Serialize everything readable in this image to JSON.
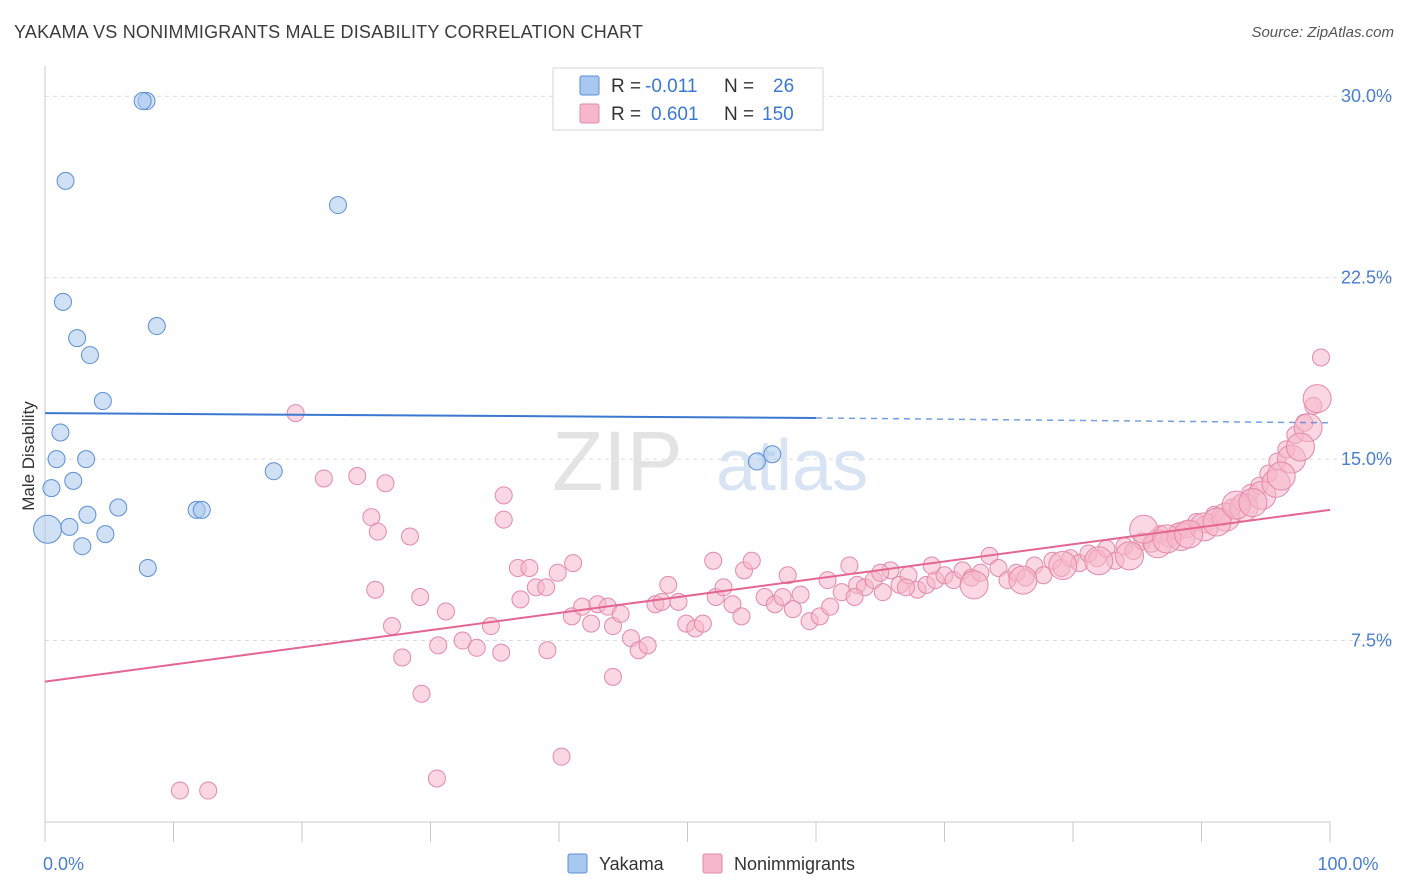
{
  "title": "YAKAMA VS NONIMMIGRANTS MALE DISABILITY CORRELATION CHART",
  "source": "Source: ZipAtlas.com",
  "watermark": {
    "part1": "ZIP",
    "part2": "atlas"
  },
  "legend_box": {
    "rows": [
      {
        "r_label": "R =",
        "r_value": "-0.011",
        "n_label": "N =",
        "n_value": "26",
        "color": "#a9c8ef"
      },
      {
        "r_label": "R =",
        "r_value": "0.601",
        "n_label": "N =",
        "n_value": "150",
        "color": "#f6b6cb"
      }
    ]
  },
  "bottom_legend": [
    {
      "label": "Yakama",
      "color": "#a9c8ef"
    },
    {
      "label": "Nonimmigrants",
      "color": "#f6b6cb"
    }
  ],
  "colors": {
    "yakama_fill": "#a9c8ef",
    "yakama_stroke": "#5b8fd6",
    "yakama_line": "#3b78d1",
    "nonimm_fill": "#f6b6cb",
    "nonimm_stroke": "#e38aa7",
    "nonimm_line": "#e3668f",
    "tick_label": "#4a7fce",
    "grid": "#dcdcdc"
  },
  "chart_data": {
    "type": "scatter",
    "xlabel": "",
    "ylabel": "Male Disability",
    "xlim": [
      0,
      100
    ],
    "ylim": [
      0,
      31
    ],
    "x_tick_labels": [
      {
        "value": 0,
        "label": "0.0%"
      },
      {
        "value": 100,
        "label": "100.0%"
      }
    ],
    "y_ticks": [
      {
        "value": 7.5,
        "label": "7.5%"
      },
      {
        "value": 15.0,
        "label": "15.0%"
      },
      {
        "value": 22.5,
        "label": "22.5%"
      },
      {
        "value": 30.0,
        "label": "30.0%"
      }
    ],
    "grid": true,
    "series": [
      {
        "name": "Yakama",
        "points": [
          [
            0.2,
            12.1,
            2
          ],
          [
            1.6,
            26.5,
            1
          ],
          [
            1.4,
            21.5,
            1
          ],
          [
            2.5,
            20.0,
            1
          ],
          [
            3.5,
            19.3,
            1
          ],
          [
            4.5,
            17.4,
            1
          ],
          [
            1.2,
            16.1,
            1
          ],
          [
            0.9,
            15.0,
            1
          ],
          [
            3.2,
            15.0,
            1
          ],
          [
            0.5,
            13.8,
            1
          ],
          [
            2.2,
            14.1,
            1
          ],
          [
            3.3,
            12.7,
            1
          ],
          [
            5.7,
            13.0,
            1
          ],
          [
            1.9,
            12.2,
            1
          ],
          [
            4.7,
            11.9,
            1
          ],
          [
            2.9,
            11.4,
            1
          ],
          [
            7.9,
            29.8,
            1
          ],
          [
            7.6,
            29.8,
            1
          ],
          [
            22.8,
            25.5,
            1
          ],
          [
            8.7,
            20.5,
            1
          ],
          [
            17.8,
            14.5,
            1
          ],
          [
            11.8,
            12.9,
            1
          ],
          [
            12.2,
            12.9,
            1
          ],
          [
            8.0,
            10.5,
            1
          ],
          [
            55.4,
            14.9,
            1
          ],
          [
            56.6,
            15.2,
            1
          ]
        ],
        "trend": {
          "x_start": 0,
          "y_start": 16.9,
          "x_end": 60,
          "y_end": 16.7,
          "dashed_to_x": 100,
          "dashed_to_y": 16.5
        }
      },
      {
        "name": "Nonimmigrants",
        "points": [
          [
            19.5,
            16.9,
            1
          ],
          [
            21.7,
            14.2,
            1
          ],
          [
            24.3,
            14.3,
            1
          ],
          [
            26.5,
            14.0,
            1
          ],
          [
            25.4,
            12.6,
            1
          ],
          [
            25.9,
            12.0,
            1
          ],
          [
            28.4,
            11.8,
            1
          ],
          [
            35.7,
            13.5,
            1
          ],
          [
            35.7,
            12.5,
            1
          ],
          [
            36.8,
            10.5,
            1
          ],
          [
            37.7,
            10.5,
            1
          ],
          [
            38.2,
            9.7,
            1
          ],
          [
            39.0,
            9.7,
            1
          ],
          [
            39.9,
            10.3,
            1
          ],
          [
            41.1,
            10.7,
            1
          ],
          [
            25.7,
            9.6,
            1
          ],
          [
            27.0,
            8.1,
            1
          ],
          [
            27.8,
            6.8,
            1
          ],
          [
            29.2,
            9.3,
            1
          ],
          [
            30.6,
            7.3,
            1
          ],
          [
            31.2,
            8.7,
            1
          ],
          [
            32.5,
            7.5,
            1
          ],
          [
            33.6,
            7.2,
            1
          ],
          [
            34.7,
            8.1,
            1
          ],
          [
            35.5,
            7.0,
            1
          ],
          [
            37.0,
            9.2,
            1
          ],
          [
            39.1,
            7.1,
            1
          ],
          [
            41.0,
            8.5,
            1
          ],
          [
            41.8,
            8.9,
            1
          ],
          [
            42.5,
            8.2,
            1
          ],
          [
            43.0,
            9.0,
            1
          ],
          [
            43.8,
            8.9,
            1
          ],
          [
            44.2,
            8.1,
            1
          ],
          [
            44.8,
            8.6,
            1
          ],
          [
            45.6,
            7.6,
            1
          ],
          [
            46.2,
            7.1,
            1
          ],
          [
            46.9,
            7.3,
            1
          ],
          [
            47.5,
            9.0,
            1
          ],
          [
            48.0,
            9.1,
            1
          ],
          [
            48.5,
            9.8,
            1
          ],
          [
            49.3,
            9.1,
            1
          ],
          [
            49.9,
            8.2,
            1
          ],
          [
            50.6,
            8.0,
            1
          ],
          [
            51.2,
            8.2,
            1
          ],
          [
            52.2,
            9.3,
            1
          ],
          [
            52.8,
            9.7,
            1
          ],
          [
            53.5,
            9.0,
            1
          ],
          [
            54.2,
            8.5,
            1
          ],
          [
            52.0,
            10.8,
            1
          ],
          [
            54.4,
            10.4,
            1
          ],
          [
            55.0,
            10.8,
            1
          ],
          [
            56.0,
            9.3,
            1
          ],
          [
            56.8,
            9.0,
            1
          ],
          [
            57.4,
            9.3,
            1
          ],
          [
            58.2,
            8.8,
            1
          ],
          [
            58.8,
            9.4,
            1
          ],
          [
            59.5,
            8.3,
            1
          ],
          [
            60.3,
            8.5,
            1
          ],
          [
            61.1,
            8.9,
            1
          ],
          [
            62.0,
            9.5,
            1
          ],
          [
            62.6,
            10.6,
            1
          ],
          [
            63.2,
            9.8,
            1
          ],
          [
            63.8,
            9.7,
            1
          ],
          [
            64.5,
            10.0,
            1
          ],
          [
            65.2,
            9.5,
            1
          ],
          [
            65.8,
            10.4,
            1
          ],
          [
            66.5,
            9.8,
            1
          ],
          [
            67.2,
            10.2,
            1
          ],
          [
            67.9,
            9.6,
            1
          ],
          [
            68.6,
            9.8,
            1
          ],
          [
            69.3,
            10.0,
            1
          ],
          [
            70.0,
            10.2,
            1
          ],
          [
            70.7,
            10.0,
            1
          ],
          [
            71.4,
            10.4,
            1
          ],
          [
            72.1,
            10.1,
            1
          ],
          [
            72.8,
            10.3,
            1
          ],
          [
            73.5,
            11.0,
            1
          ],
          [
            74.2,
            10.5,
            1
          ],
          [
            74.9,
            10.0,
            1
          ],
          [
            75.6,
            10.3,
            1
          ],
          [
            76.3,
            10.1,
            1
          ],
          [
            77.0,
            10.6,
            1
          ],
          [
            77.7,
            10.2,
            1
          ],
          [
            78.4,
            10.8,
            1
          ],
          [
            79.1,
            10.5,
            1
          ],
          [
            79.8,
            10.9,
            1
          ],
          [
            80.5,
            10.7,
            1
          ],
          [
            81.2,
            11.1,
            1
          ],
          [
            81.9,
            10.9,
            1
          ],
          [
            82.6,
            11.3,
            1
          ],
          [
            83.3,
            10.8,
            1
          ],
          [
            84.0,
            11.4,
            1
          ],
          [
            84.7,
            11.2,
            1
          ],
          [
            85.4,
            11.6,
            1
          ],
          [
            86.1,
            11.5,
            1
          ],
          [
            86.8,
            11.9,
            1
          ],
          [
            87.5,
            11.7,
            1
          ],
          [
            88.2,
            12.0,
            1
          ],
          [
            88.9,
            12.1,
            1
          ],
          [
            89.6,
            12.4,
            1
          ],
          [
            90.3,
            12.3,
            1
          ],
          [
            91.0,
            12.7,
            1
          ],
          [
            91.7,
            12.6,
            1
          ],
          [
            92.4,
            13.0,
            1
          ],
          [
            93.1,
            13.2,
            1
          ],
          [
            93.8,
            13.6,
            1
          ],
          [
            94.5,
            13.9,
            1
          ],
          [
            95.2,
            14.4,
            1
          ],
          [
            95.9,
            14.9,
            1
          ],
          [
            96.6,
            15.4,
            1
          ],
          [
            97.3,
            16.0,
            1
          ],
          [
            98.0,
            16.5,
            1
          ],
          [
            98.7,
            17.2,
            1
          ],
          [
            99.3,
            19.2,
            1
          ],
          [
            72.3,
            9.8,
            2
          ],
          [
            76.1,
            10.0,
            2
          ],
          [
            79.2,
            10.6,
            2
          ],
          [
            82.0,
            10.8,
            2
          ],
          [
            84.4,
            11.0,
            2
          ],
          [
            86.6,
            11.5,
            2
          ],
          [
            88.4,
            11.8,
            2
          ],
          [
            90.2,
            12.2,
            2
          ],
          [
            91.9,
            12.6,
            2
          ],
          [
            93.3,
            13.0,
            2
          ],
          [
            94.7,
            13.5,
            2
          ],
          [
            95.8,
            14.0,
            2
          ],
          [
            97.0,
            15.0,
            2
          ],
          [
            98.3,
            16.3,
            2
          ],
          [
            99.0,
            17.5,
            2
          ],
          [
            85.5,
            12.1,
            2
          ],
          [
            87.3,
            11.7,
            2
          ],
          [
            89.0,
            11.9,
            2
          ],
          [
            91.2,
            12.4,
            2
          ],
          [
            92.7,
            13.1,
            2
          ],
          [
            94.0,
            13.2,
            2
          ],
          [
            96.2,
            14.3,
            2
          ],
          [
            97.7,
            15.5,
            2
          ],
          [
            57.8,
            10.2,
            1
          ],
          [
            60.9,
            10.0,
            1
          ],
          [
            63.0,
            9.3,
            1
          ],
          [
            65.0,
            10.3,
            1
          ],
          [
            67.0,
            9.7,
            1
          ],
          [
            69.0,
            10.6,
            1
          ],
          [
            10.5,
            1.3,
            1
          ],
          [
            12.7,
            1.3,
            1
          ],
          [
            30.5,
            1.8,
            1
          ],
          [
            40.2,
            2.7,
            1
          ],
          [
            29.3,
            5.3,
            1
          ],
          [
            44.2,
            6.0,
            1
          ]
        ],
        "trend": {
          "x_start": 0,
          "y_start": 5.8,
          "x_end": 100,
          "y_end": 12.9
        }
      }
    ]
  }
}
